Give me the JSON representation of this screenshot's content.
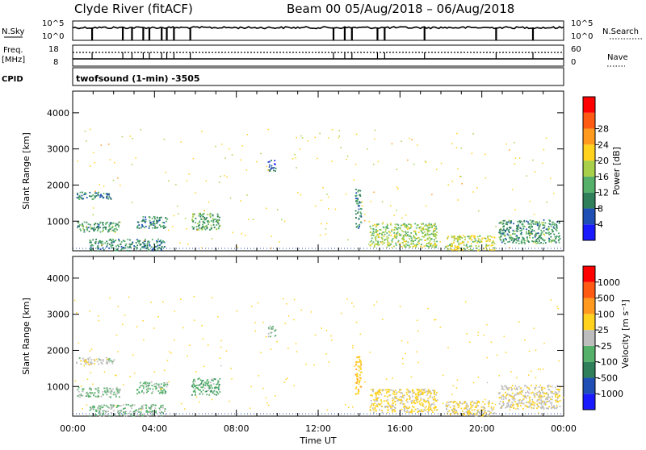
{
  "header": {
    "title_left": "Clyde River (fitACF)",
    "title_right": "Beam 00  05/Aug/2018 – 06/Aug/2018"
  },
  "top_panels": {
    "nsky_label": "N.Sky",
    "nsearch_label": "N.Search",
    "nsky_ticks": [
      "10^5",
      "10^0"
    ],
    "nsky_right_ticks": [
      "10^5",
      "10^0"
    ],
    "freq_label": "Freq.",
    "freq_unit": "[MHz]",
    "freq_ticks": [
      "18",
      "8"
    ],
    "nave_label": "Nave",
    "nave_ticks": [
      "60",
      "0"
    ],
    "cpid_label": "CPID",
    "cpid_text": "twofsound (1-min) -3505",
    "gap_times": [
      0.95,
      2.45,
      2.9,
      3.45,
      3.75,
      4.35,
      4.6,
      4.95,
      5.75,
      12.75,
      13.3,
      13.65,
      14.9,
      15.25,
      17.2,
      20.7,
      22.5
    ]
  },
  "axes": {
    "ylabel": "Slant Range [km]",
    "xlabel": "Time UT",
    "y_ticks": [
      "1000",
      "2000",
      "3000",
      "4000"
    ],
    "x_ticks": [
      "00:00",
      "04:00",
      "08:00",
      "12:00",
      "16:00",
      "20:00",
      "00:00"
    ]
  },
  "colorbars": {
    "power": {
      "label": "Power [dB]",
      "ticks": [
        "4",
        "8",
        "12",
        "16",
        "20",
        "24",
        "28"
      ],
      "colors": [
        "#1a1aff",
        "#1f4fb5",
        "#2f7f5a",
        "#55b06a",
        "#a9d04a",
        "#ffd21e",
        "#ff9a1e",
        "#ff5a14",
        "#ff0000"
      ]
    },
    "velocity": {
      "label": "Velocity [m s⁻¹]",
      "ticks": [
        "1000",
        "500",
        "100",
        "25",
        "-25",
        "-100",
        "-500",
        "-1000"
      ],
      "colors": [
        "#1a1aff",
        "#1f4fb5",
        "#2f7f5a",
        "#55b06a",
        "#bdbdbd",
        "#ffd21e",
        "#ff9a1e",
        "#ff5a14",
        "#ff0000"
      ]
    }
  },
  "chart_data": [
    {
      "type": "heatmap",
      "title": "Power",
      "xlabel": "Time UT",
      "ylabel": "Slant Range [km]",
      "xlim": [
        0,
        24
      ],
      "ylim": [
        180,
        4600
      ],
      "clim": [
        0,
        30
      ],
      "clusters": [
        {
          "t0": 0.15,
          "t1": 2.0,
          "r0": 1620,
          "r1": 1820,
          "v": 8
        },
        {
          "t0": 0.2,
          "t1": 2.3,
          "r0": 720,
          "r1": 1000,
          "v": 10
        },
        {
          "t0": 3.1,
          "t1": 4.6,
          "r0": 820,
          "r1": 1150,
          "v": 9
        },
        {
          "t0": 5.8,
          "t1": 7.2,
          "r0": 780,
          "r1": 1250,
          "v": 11
        },
        {
          "t0": 0.8,
          "t1": 4.5,
          "r0": 200,
          "r1": 520,
          "v": 9
        },
        {
          "t0": 9.5,
          "t1": 9.9,
          "r0": 2400,
          "r1": 2700,
          "v": 6
        },
        {
          "t0": 14.5,
          "t1": 17.8,
          "r0": 300,
          "r1": 950,
          "v": 14
        },
        {
          "t0": 18.2,
          "t1": 20.6,
          "r0": 200,
          "r1": 620,
          "v": 16
        },
        {
          "t0": 20.8,
          "t1": 23.8,
          "r0": 400,
          "r1": 1050,
          "v": 10
        },
        {
          "t0": 13.8,
          "t1": 14.1,
          "r0": 800,
          "r1": 1900,
          "v": 8
        }
      ]
    },
    {
      "type": "heatmap",
      "title": "Velocity",
      "xlabel": "Time UT",
      "ylabel": "Slant Range [km]",
      "xlim": [
        0,
        24
      ],
      "ylim": [
        180,
        4600
      ],
      "clim": [
        -1000,
        1000
      ],
      "clusters": [
        {
          "t0": 0.15,
          "t1": 2.0,
          "r0": 1620,
          "r1": 1820,
          "v": 0
        },
        {
          "t0": 0.2,
          "t1": 2.3,
          "r0": 720,
          "r1": 1000,
          "v": -150
        },
        {
          "t0": 3.1,
          "t1": 4.6,
          "r0": 820,
          "r1": 1150,
          "v": -200
        },
        {
          "t0": 5.8,
          "t1": 7.2,
          "r0": 780,
          "r1": 1250,
          "v": -220
        },
        {
          "t0": 0.8,
          "t1": 4.5,
          "r0": 200,
          "r1": 520,
          "v": -120
        },
        {
          "t0": 9.5,
          "t1": 9.9,
          "r0": 2400,
          "r1": 2700,
          "v": -60
        },
        {
          "t0": 14.5,
          "t1": 17.8,
          "r0": 300,
          "r1": 950,
          "v": 160
        },
        {
          "t0": 18.2,
          "t1": 20.6,
          "r0": 200,
          "r1": 620,
          "v": 120
        },
        {
          "t0": 20.8,
          "t1": 23.8,
          "r0": 400,
          "r1": 1050,
          "v": 60
        },
        {
          "t0": 13.8,
          "t1": 14.1,
          "r0": 800,
          "r1": 1900,
          "v": 300
        }
      ]
    }
  ]
}
